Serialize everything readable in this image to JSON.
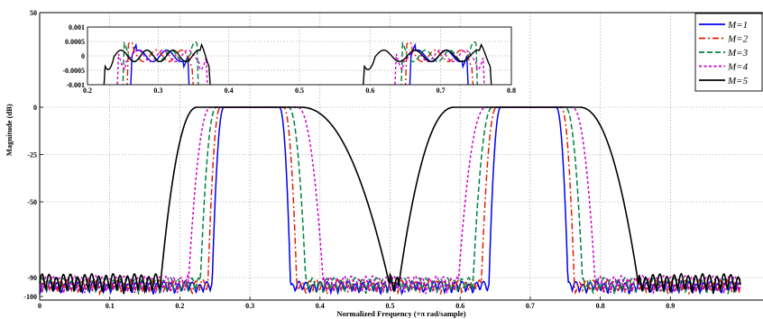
{
  "chart_data": {
    "type": "line",
    "title": "",
    "xlabel": "Normalized Frequency (×π rad/sample)",
    "ylabel": "Magnitude (dB)",
    "xlim": [
      0,
      1
    ],
    "ylim": [
      -100,
      50
    ],
    "x_ticks": [
      "0",
      "0.1",
      "0.2",
      "0.3",
      "0.4",
      "0.5",
      "0.6",
      "0.7",
      "0.8",
      "0.9"
    ],
    "x_tick_values": [
      0,
      0.1,
      0.2,
      0.3,
      0.4,
      0.5,
      0.6,
      0.7,
      0.8,
      0.9
    ],
    "y_ticks": [
      "50",
      "0",
      "-25",
      "-50",
      "-90",
      "-100"
    ],
    "y_tick_values": [
      50,
      0,
      -25,
      -50,
      -90,
      -100
    ],
    "grid": true,
    "legend_position": "top-right",
    "stopband_level_db": -95,
    "series": [
      {
        "name": "M=1",
        "color": "#0000ee",
        "dash": "solid",
        "passbands": [
          {
            "edges": [
              0.246,
              0.263,
              0.342,
              0.358
            ]
          },
          {
            "edges": [
              0.641,
              0.658,
              0.737,
              0.754
            ]
          }
        ]
      },
      {
        "name": "M=2",
        "color": "#e02000",
        "dash": "dashdot",
        "passbands": [
          {
            "edges": [
              0.24,
              0.258,
              0.348,
              0.367
            ]
          },
          {
            "edges": [
              0.63,
              0.652,
              0.744,
              0.763
            ]
          }
        ]
      },
      {
        "name": "M=3",
        "color": "#008040",
        "dash": "dashed",
        "passbands": [
          {
            "edges": [
              0.229,
              0.252,
              0.355,
              0.38
            ]
          },
          {
            "edges": [
              0.618,
              0.646,
              0.75,
              0.775
            ]
          }
        ]
      },
      {
        "name": "M=4",
        "color": "#cc00cc",
        "dash": "dotted",
        "passbands": [
          {
            "edges": [
              0.212,
              0.244,
              0.368,
              0.405
            ]
          },
          {
            "edges": [
              0.597,
              0.637,
              0.76,
              0.793
            ]
          }
        ]
      },
      {
        "name": "M=5",
        "color": "#000000",
        "dash": "solid",
        "passbands": [
          {
            "edges": [
              0.172,
              0.225,
              0.372,
              0.5
            ]
          },
          {
            "edges": [
              0.512,
              0.592,
              0.77,
              0.855
            ]
          }
        ]
      }
    ],
    "inset": {
      "xlim": [
        0.2,
        0.8
      ],
      "ylim": [
        -0.001,
        0.001
      ],
      "x_ticks": [
        "0.2",
        "0.3",
        "0.4",
        "0.5",
        "0.6",
        "0.7",
        "0.8"
      ],
      "x_tick_values": [
        0.2,
        0.3,
        0.4,
        0.5,
        0.6,
        0.7,
        0.8
      ],
      "y_ticks": [
        "0.001",
        "0.0005",
        "0",
        "-0.0005",
        "-0.001"
      ],
      "y_tick_values": [
        0.001,
        0.0005,
        0,
        -0.0005,
        -0.001
      ],
      "ripple_amplitude": 0.0002
    }
  }
}
